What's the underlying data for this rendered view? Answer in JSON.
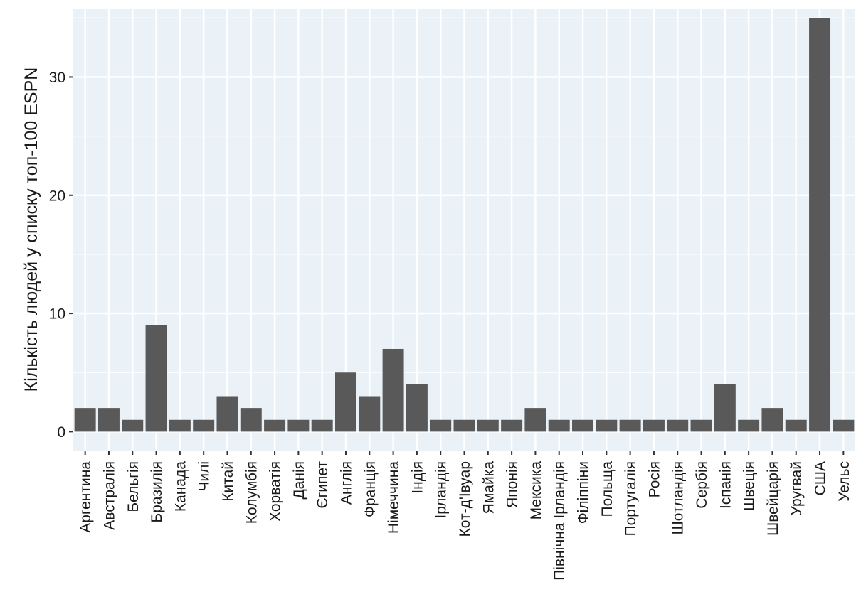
{
  "colors": {
    "panel": "#ebf2f7",
    "grid": "#ffffff",
    "bar": "#595959",
    "tick": "#333333"
  },
  "chart_data": {
    "type": "bar",
    "title": "",
    "xlabel": "",
    "ylabel": "Кількість людей у списку топ-100 ESPN",
    "ylim": [
      -1.6,
      35.8
    ],
    "yticks": [
      0,
      10,
      20,
      30
    ],
    "grid": true,
    "legend": "none",
    "categories": [
      "Аргентина",
      "Австралія",
      "Бельгія",
      "Бразилія",
      "Канада",
      "Чилі",
      "Китай",
      "Колумбія",
      "Хорватія",
      "Данія",
      "Єгипет",
      "Англія",
      "Франція",
      "Німеччина",
      "Індія",
      "Ірландія",
      "Кот-д'Івуар",
      "Ямайка",
      "Японія",
      "Мексика",
      "Північна Ірландія",
      "Філіппіни",
      "Польща",
      "Португалія",
      "Росія",
      "Шотландія",
      "Сербія",
      "Іспанія",
      "Швеція",
      "Швейцарія",
      "Уругвай",
      "США",
      "Уельс"
    ],
    "values": [
      2,
      2,
      1,
      9,
      1,
      1,
      3,
      2,
      1,
      1,
      1,
      5,
      3,
      7,
      4,
      1,
      1,
      1,
      1,
      2,
      1,
      1,
      1,
      1,
      1,
      1,
      1,
      4,
      1,
      2,
      1,
      35,
      1
    ]
  }
}
